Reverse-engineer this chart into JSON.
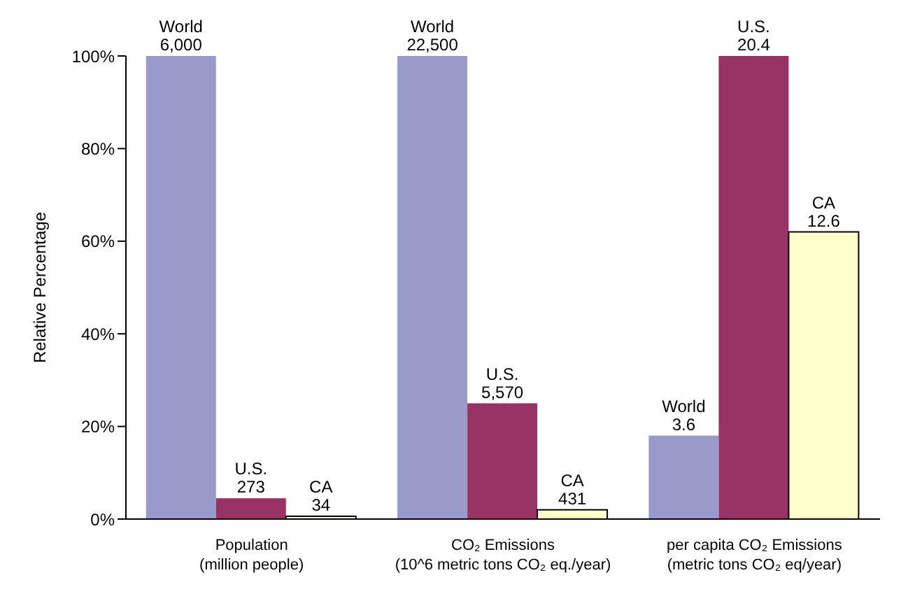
{
  "chart_data": {
    "type": "bar",
    "ylabel": "Relative Percentage",
    "categories": [
      "Population\n(million people)",
      "CO₂ Emissions\n(10^6 metric tons CO₂ eq./year)",
      "per capita CO₂ Emissions\n(metric tons CO₂ eq/year)"
    ],
    "series": [
      {
        "name": "World",
        "color": "#9999cc",
        "values": [
          100,
          100,
          18
        ]
      },
      {
        "name": "U.S.",
        "color": "#993366",
        "values": [
          4.5,
          25,
          100
        ]
      },
      {
        "name": "CA",
        "color": "#ffffcc",
        "values": [
          0.6,
          2,
          62
        ]
      }
    ],
    "annotations": [
      "6,000",
      "22,500",
      "3.6",
      "273",
      "5,570",
      "20.4",
      "34",
      "431",
      "12.6"
    ],
    "ylim": [
      0,
      100
    ],
    "yticks": [
      {
        "value": 0,
        "label": "0%"
      },
      {
        "value": 20,
        "label": "20%"
      },
      {
        "value": 40,
        "label": "40%"
      },
      {
        "value": 60,
        "label": "60%"
      },
      {
        "value": 80,
        "label": "80%"
      },
      {
        "value": 100,
        "label": "100%"
      }
    ],
    "grid": false,
    "legend": false
  }
}
